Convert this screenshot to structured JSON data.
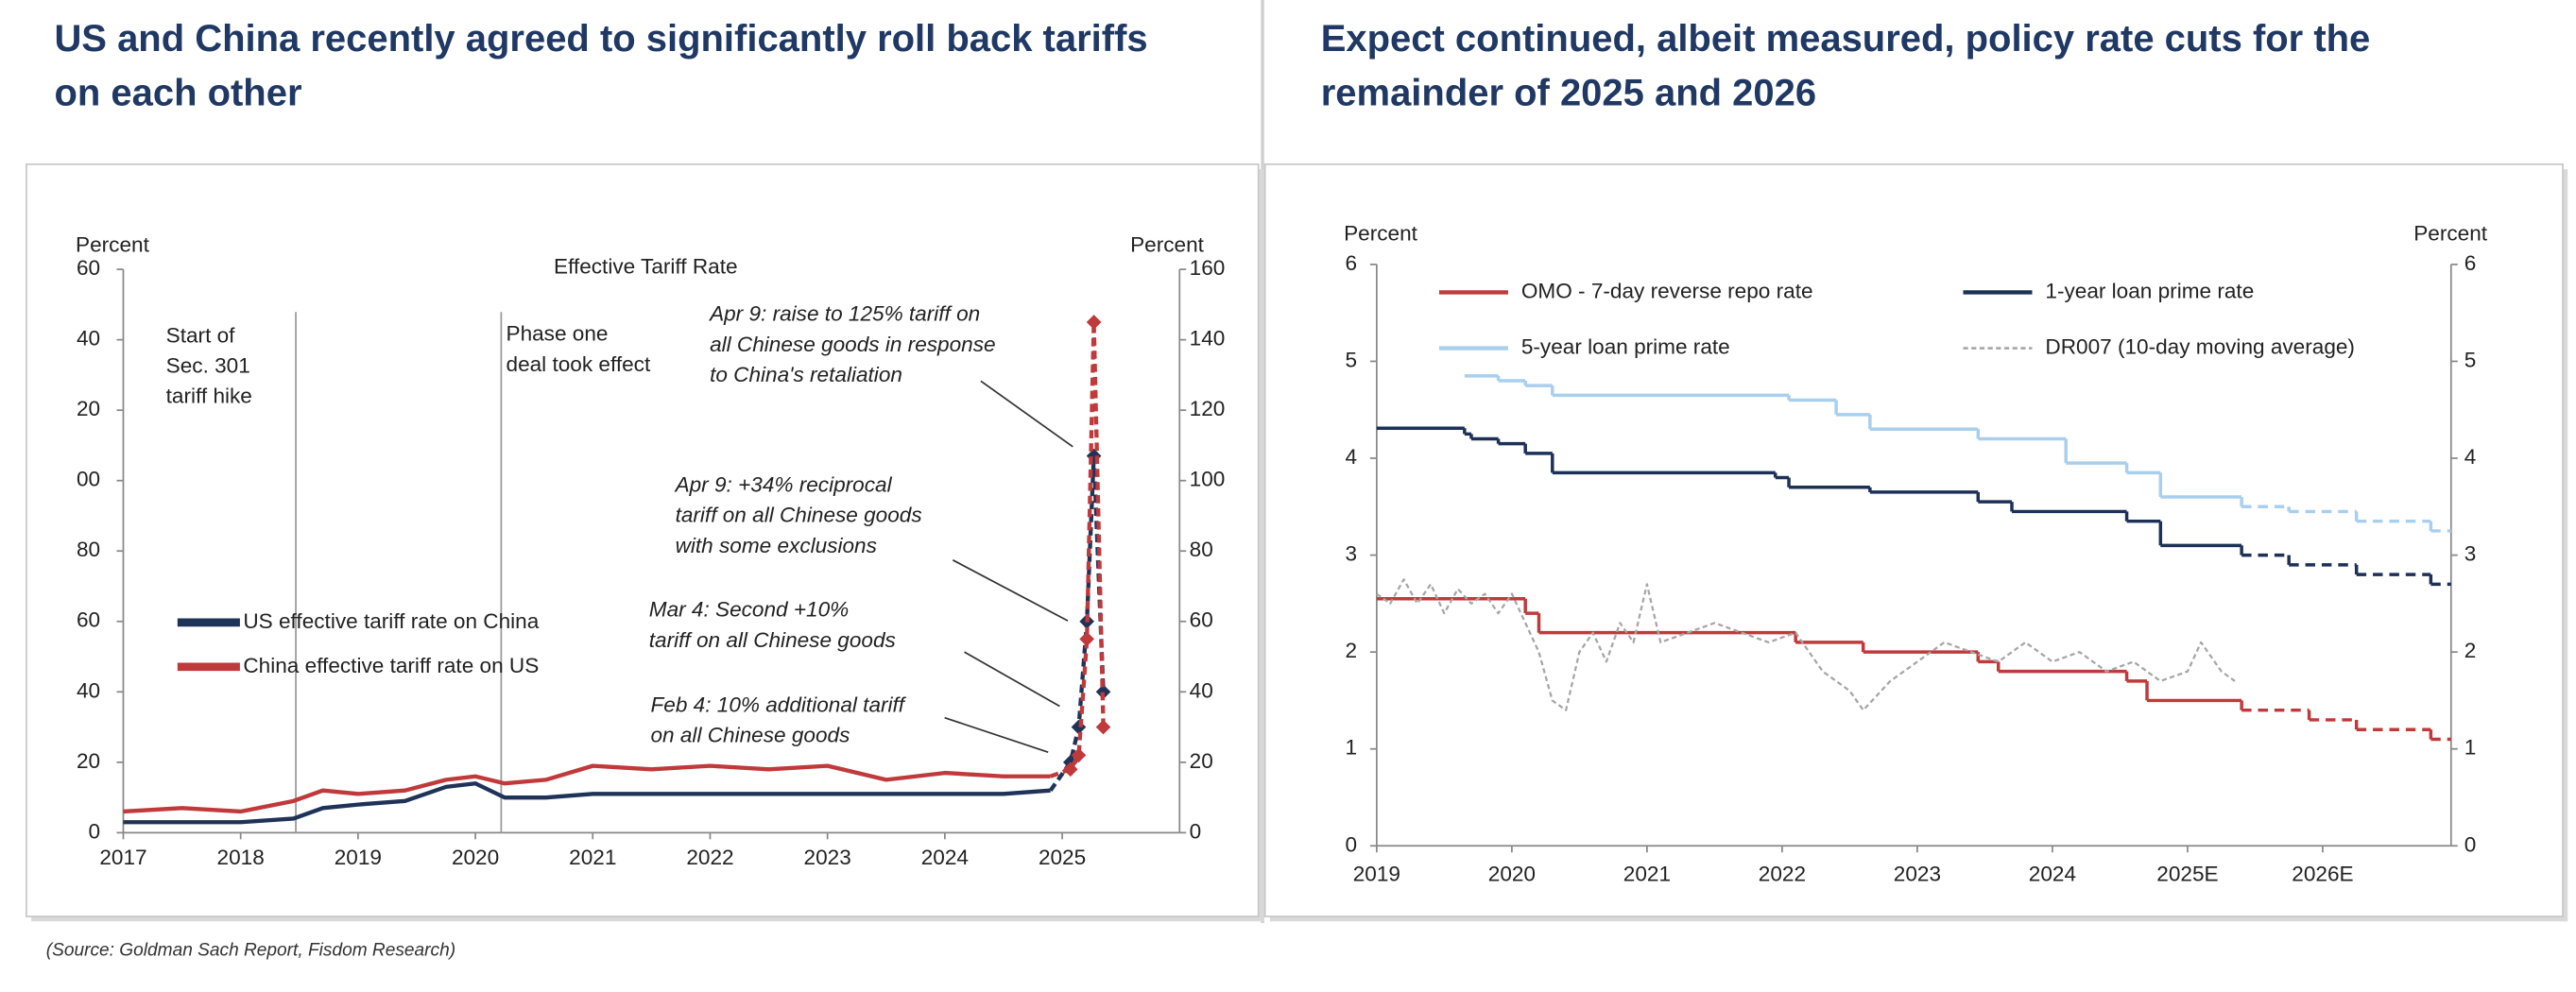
{
  "source": "(Source: Goldman Sach Report, Fisdom Research)",
  "chart_data": [
    {
      "type": "line",
      "title": [
        "US and China recently agreed to significantly roll back tariffs",
        "on each other"
      ],
      "subtitle": "Effective Tariff Rate",
      "y_label": "Percent",
      "y2_label": "Percent",
      "xlim": [
        2017,
        2026
      ],
      "xticks": [
        2017,
        2018,
        2019,
        2020,
        2021,
        2022,
        2023,
        2024,
        2025
      ],
      "ylim": [
        0,
        160
      ],
      "yticks": [
        0,
        20,
        40,
        60,
        80,
        {
          "value": 100,
          "label": "00"
        },
        {
          "value": 120,
          "label": "20"
        },
        {
          "value": 140,
          "label": "40"
        },
        {
          "value": 160,
          "label": "60"
        }
      ],
      "y2lim": [
        0,
        160
      ],
      "y2ticks": [
        0,
        20,
        40,
        60,
        80,
        100,
        120,
        140,
        160
      ],
      "x": [
        2017,
        2017.5,
        2018,
        2018.45,
        2018.7,
        2019,
        2019.4,
        2019.75,
        2020,
        2020.25,
        2020.6,
        2021,
        2021.5,
        2022,
        2022.5,
        2023,
        2023.5,
        2024,
        2024.5,
        2024.9,
        2025.07,
        2025.14,
        2025.21,
        2025.27,
        2025.35
      ],
      "series": [
        {
          "name": "US effective tariff rate on China",
          "color": "#1f3358",
          "dashed_from_index": 20,
          "marker": "diamond",
          "values": [
            3,
            3,
            3,
            4,
            7,
            8,
            9,
            13,
            14,
            10,
            10,
            11,
            11,
            11,
            11,
            11,
            11,
            11,
            11,
            12,
            20,
            30,
            60,
            107,
            40
          ]
        },
        {
          "name": "China effective tariff rate on US",
          "color": "#c0393b",
          "dashed_from_index": 20,
          "marker": "diamond",
          "values": [
            6,
            7,
            6,
            9,
            12,
            11,
            12,
            15,
            16,
            14,
            15,
            19,
            18,
            19,
            18,
            19,
            15,
            17,
            16,
            16,
            18,
            22,
            55,
            145,
            30
          ]
        }
      ],
      "events": [
        {
          "x": 2018.47,
          "lines": [
            "Start of",
            "Sec. 301",
            "tariff hike"
          ]
        },
        {
          "x": 2020.22,
          "lines": [
            "Phase one",
            "deal took effect"
          ]
        }
      ],
      "annotations": [
        {
          "lines": [
            "Apr 9: raise to 125% tariff on",
            "all Chinese goods in response",
            "to China's retaliation"
          ]
        },
        {
          "lines": [
            "Apr 9: +34% reciprocal",
            "tariff on all Chinese goods",
            "with some exclusions"
          ]
        },
        {
          "lines": [
            "Mar 4: Second +10%",
            "tariff on all Chinese goods"
          ]
        },
        {
          "lines": [
            "Feb 4: 10% additional tariff",
            "on all Chinese goods"
          ]
        }
      ]
    },
    {
      "type": "line",
      "title": [
        "Expect continued, albeit measured, policy rate cuts for the",
        "remainder of 2025 and 2026"
      ],
      "y_label": "Percent",
      "y2_label": "Percent",
      "xlim": [
        2019,
        2026.95
      ],
      "xticks": [
        2019,
        2020,
        2021,
        2022,
        2023,
        2024,
        {
          "value": 2025,
          "label": "2025E"
        },
        {
          "value": 2026,
          "label": "2026E"
        }
      ],
      "ylim": [
        0,
        6
      ],
      "yticks": [
        0,
        1,
        2,
        3,
        4,
        5,
        6
      ],
      "y2lim": [
        0,
        6
      ],
      "y2ticks": [
        0,
        1,
        2,
        3,
        4,
        5,
        6
      ],
      "series": [
        {
          "name": "OMO - 7-day reverse repo rate",
          "color": "#c0393b",
          "step": true,
          "dashed_from_index": 9,
          "x": [
            2019,
            2020.1,
            2020.2,
            2022.1,
            2022.6,
            2023.45,
            2023.6,
            2024.55,
            2024.7,
            2025.4,
            2025.9,
            2026.25,
            2026.8
          ],
          "values": [
            2.55,
            2.4,
            2.2,
            2.1,
            2.0,
            1.9,
            1.8,
            1.7,
            1.5,
            1.4,
            1.3,
            1.2,
            1.1
          ]
        },
        {
          "name": "1-year loan prime rate",
          "color": "#1c3058",
          "step": true,
          "dashed_from_index": 13,
          "x": [
            2019,
            2019.65,
            2019.7,
            2019.9,
            2020.1,
            2020.3,
            2021.95,
            2022.05,
            2022.65,
            2023.45,
            2023.7,
            2024.55,
            2024.8,
            2025.4,
            2025.75,
            2026.25,
            2026.8
          ],
          "values": [
            4.31,
            4.25,
            4.2,
            4.15,
            4.05,
            3.85,
            3.8,
            3.7,
            3.65,
            3.55,
            3.45,
            3.35,
            3.1,
            3.0,
            2.9,
            2.8,
            2.7
          ]
        },
        {
          "name": "5-year loan prime rate",
          "color": "#a9cfee",
          "step": true,
          "dashed_from_index": 11,
          "x": [
            2019.65,
            2019.9,
            2020.1,
            2020.3,
            2022.05,
            2022.4,
            2022.65,
            2023.45,
            2024.1,
            2024.55,
            2024.8,
            2025.4,
            2025.75,
            2026.25,
            2026.8
          ],
          "values": [
            4.85,
            4.8,
            4.75,
            4.65,
            4.6,
            4.45,
            4.3,
            4.2,
            3.95,
            3.85,
            3.6,
            3.5,
            3.45,
            3.35,
            3.25
          ]
        },
        {
          "name": "DR007 (10-day moving average)",
          "color": "#a6a6a6",
          "line_style": "dashed",
          "x": [
            2019.0,
            2019.1,
            2019.2,
            2019.3,
            2019.4,
            2019.5,
            2019.6,
            2019.7,
            2019.8,
            2019.9,
            2020.0,
            2020.1,
            2020.2,
            2020.3,
            2020.4,
            2020.5,
            2020.6,
            2020.7,
            2020.8,
            2020.9,
            2021.0,
            2021.1,
            2021.3,
            2021.5,
            2021.7,
            2021.9,
            2022.1,
            2022.3,
            2022.5,
            2022.6,
            2022.8,
            2023.0,
            2023.2,
            2023.4,
            2023.6,
            2023.8,
            2024.0,
            2024.2,
            2024.4,
            2024.6,
            2024.8,
            2025.0,
            2025.1,
            2025.25,
            2025.35
          ],
          "values": [
            2.6,
            2.5,
            2.75,
            2.5,
            2.7,
            2.4,
            2.65,
            2.5,
            2.6,
            2.4,
            2.6,
            2.3,
            2.0,
            1.5,
            1.4,
            2.0,
            2.2,
            1.9,
            2.3,
            2.1,
            2.7,
            2.1,
            2.2,
            2.3,
            2.2,
            2.1,
            2.2,
            1.8,
            1.6,
            1.4,
            1.7,
            1.9,
            2.1,
            2.0,
            1.9,
            2.1,
            1.9,
            2.0,
            1.8,
            1.9,
            1.7,
            1.8,
            2.1,
            1.8,
            1.7
          ]
        }
      ]
    }
  ]
}
